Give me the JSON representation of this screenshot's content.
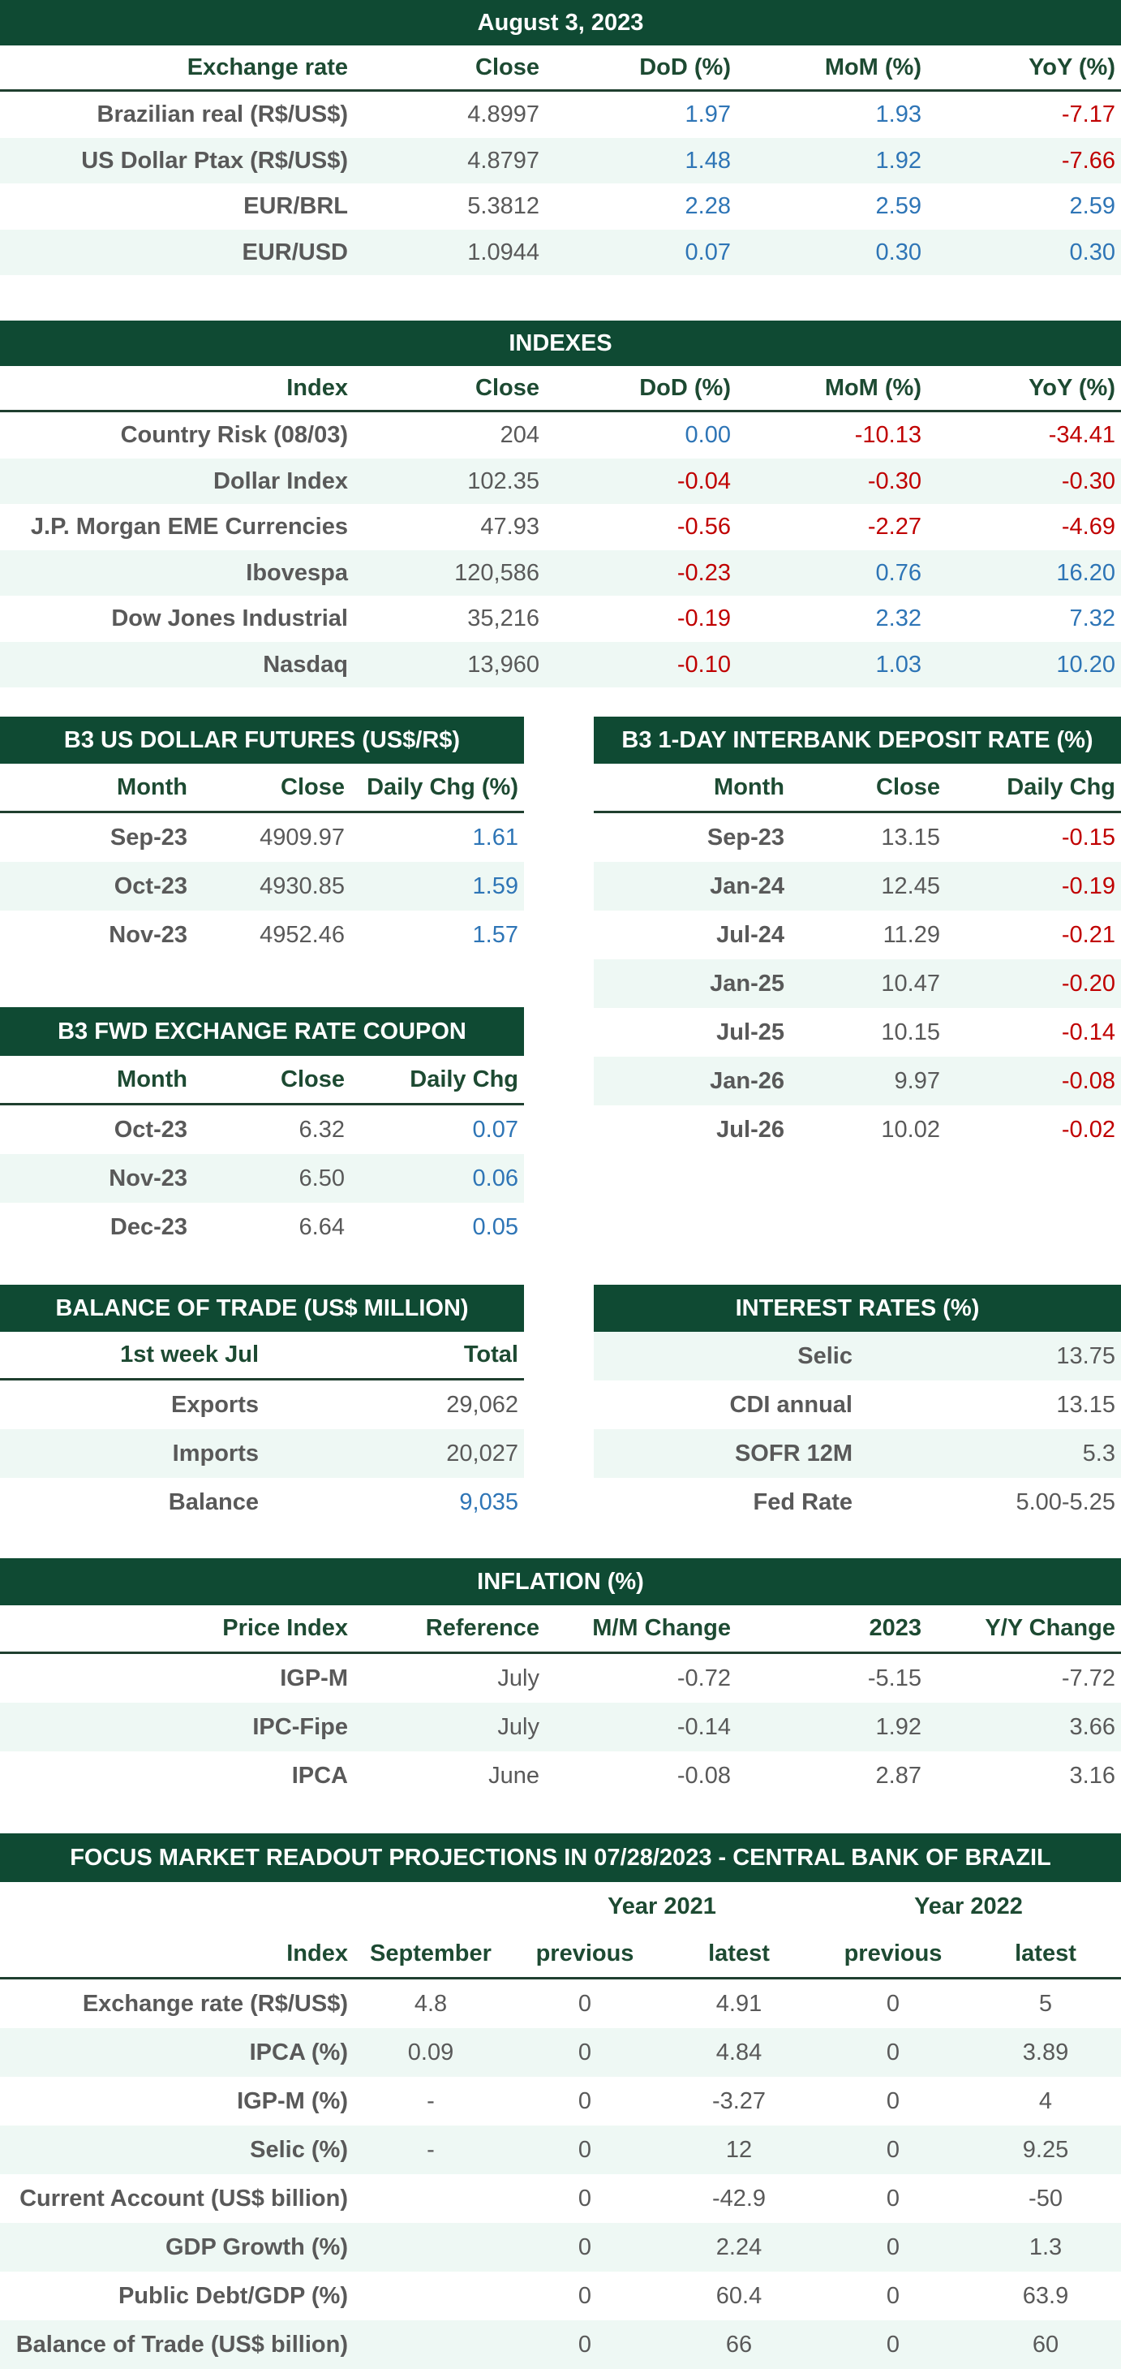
{
  "exchange": {
    "title": "August 3, 2023",
    "header": [
      "Exchange rate",
      "Close",
      "DoD (%)",
      "MoM (%)",
      "YoY (%)"
    ],
    "rows": [
      [
        "Brazilian real (R$/US$)",
        "4.8997",
        "1.97",
        "1.93",
        "-7.17"
      ],
      [
        "US Dollar Ptax (R$/US$)",
        "4.8797",
        "1.48",
        "1.92",
        "-7.66"
      ],
      [
        "EUR/BRL",
        "5.3812",
        "2.28",
        "2.59",
        "2.59"
      ],
      [
        "EUR/USD",
        "1.0944",
        "0.07",
        "0.30",
        "0.30"
      ]
    ]
  },
  "indexes": {
    "title": "INDEXES",
    "header": [
      "Index",
      "Close",
      "DoD (%)",
      "MoM (%)",
      "YoY (%)"
    ],
    "rows": [
      [
        "Country Risk (08/03)",
        "204",
        "0.00",
        "-10.13",
        "-34.41"
      ],
      [
        "Dollar Index",
        "102.35",
        "-0.04",
        "-0.30",
        "-0.30"
      ],
      [
        "J.P. Morgan EME Currencies",
        "47.93",
        "-0.56",
        "-2.27",
        "-4.69"
      ],
      [
        "Ibovespa",
        "120,586",
        "-0.23",
        "0.76",
        "16.20"
      ],
      [
        "Dow Jones Industrial",
        "35,216",
        "-0.19",
        "2.32",
        "7.32"
      ],
      [
        "Nasdaq",
        "13,960",
        "-0.10",
        "1.03",
        "10.20"
      ]
    ]
  },
  "usd_futures": {
    "title": "B3 US DOLLAR FUTURES (US$/R$)",
    "header": [
      "Month",
      "Close",
      "Daily Chg (%)"
    ],
    "rows": [
      [
        "Sep-23",
        "4909.97",
        "1.61"
      ],
      [
        "Oct-23",
        "4930.85",
        "1.59"
      ],
      [
        "Nov-23",
        "4952.46",
        "1.57"
      ]
    ]
  },
  "di_rates": {
    "title": "B3 1-DAY INTERBANK DEPOSIT RATE (%)",
    "header": [
      "Month",
      "Close",
      "Daily Chg"
    ],
    "rows": [
      [
        "Sep-23",
        "13.15",
        "-0.15"
      ],
      [
        "Jan-24",
        "12.45",
        "-0.19"
      ],
      [
        "Jul-24",
        "11.29",
        "-0.21"
      ],
      [
        "Jan-25",
        "10.47",
        "-0.20"
      ],
      [
        "Jul-25",
        "10.15",
        "-0.14"
      ],
      [
        "Jan-26",
        "9.97",
        "-0.08"
      ],
      [
        "Jul-26",
        "10.02",
        "-0.02"
      ]
    ]
  },
  "fwd_coupon": {
    "title": "B3 FWD EXCHANGE RATE COUPON",
    "header": [
      "Month",
      "Close",
      "Daily Chg"
    ],
    "rows": [
      [
        "Oct-23",
        "6.32",
        "0.07"
      ],
      [
        "Nov-23",
        "6.50",
        "0.06"
      ],
      [
        "Dec-23",
        "6.64",
        "0.05"
      ]
    ]
  },
  "balance_of_trade": {
    "title": "BALANCE OF TRADE (US$ MILLION)",
    "header": [
      "1st week Jul",
      "Total"
    ],
    "rows": [
      [
        "Exports",
        "29,062"
      ],
      [
        "Imports",
        "20,027"
      ],
      [
        "Balance",
        "9,035"
      ]
    ]
  },
  "interest_rates": {
    "title": "INTEREST RATES (%)",
    "rows": [
      [
        "Selic",
        "13.75"
      ],
      [
        "CDI annual",
        "13.15"
      ],
      [
        "SOFR 12M",
        "5.3"
      ],
      [
        "Fed Rate",
        "5.00-5.25"
      ]
    ]
  },
  "inflation": {
    "title": "INFLATION (%)",
    "header": [
      "Price Index",
      "Reference",
      "M/M Change",
      "2023",
      "Y/Y Change"
    ],
    "rows": [
      [
        "IGP-M",
        "July",
        "-0.72",
        "-5.15",
        "-7.72"
      ],
      [
        "IPC-Fipe",
        "July",
        "-0.14",
        "1.92",
        "3.66"
      ],
      [
        "IPCA",
        "June",
        "-0.08",
        "2.87",
        "3.16"
      ]
    ]
  },
  "focus": {
    "title": "FOCUS MARKET READOUT PROJECTIONS IN 07/28/2023 - CENTRAL BANK OF BRAZIL",
    "groups": [
      "Year 2021",
      "Year 2022"
    ],
    "header": [
      "Index",
      "September",
      "previous",
      "latest",
      "previous",
      "latest"
    ],
    "rows": [
      [
        "Exchange rate (R$/US$)",
        "4.8",
        "0",
        "4.91",
        "0",
        "5"
      ],
      [
        "IPCA (%)",
        "0.09",
        "0",
        "4.84",
        "0",
        "3.89"
      ],
      [
        "IGP-M (%)",
        "-",
        "0",
        "-3.27",
        "0",
        "4"
      ],
      [
        "Selic (%)",
        "-",
        "0",
        "12",
        "0",
        "9.25"
      ],
      [
        "Current Account (US$ billion)",
        null,
        "0",
        "-42.9",
        "0",
        "-50"
      ],
      [
        "GDP Growth (%)",
        null,
        "0",
        "2.24",
        "0",
        "1.3"
      ],
      [
        "Public Debt/GDP (%)",
        null,
        "0",
        "60.4",
        "0",
        "63.9"
      ],
      [
        "Balance of Trade (US$ billion)",
        null,
        "0",
        "66",
        "0",
        "60"
      ]
    ]
  }
}
